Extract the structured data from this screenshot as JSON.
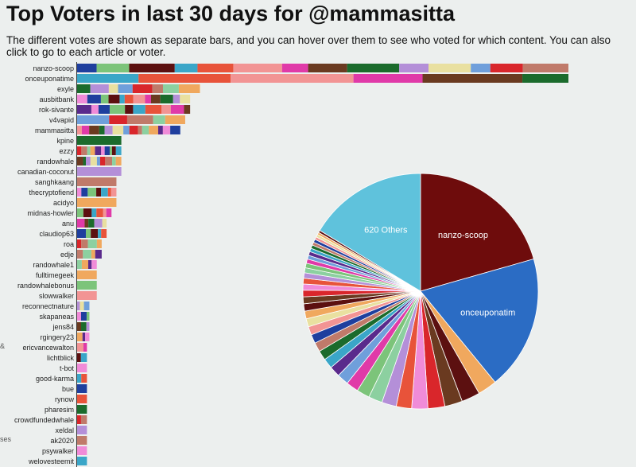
{
  "header": {
    "title": "Top Voters in last 30 days for @mammasitta",
    "description": "The different votes are shown as separate bars, and you can hover over them to see who voted for which content. You can also click to go to each article or voter."
  },
  "edge": {
    "glyph1": "&",
    "glyph2": "ses"
  },
  "colors": {
    "palette": [
      "#1f3f9e",
      "#6f9fdb",
      "#e8533a",
      "#f0a85e",
      "#1b6b2c",
      "#7cc47a",
      "#d9262b",
      "#f29494",
      "#5a2a8c",
      "#b48fd8",
      "#5c1010",
      "#c07a6a",
      "#e03aa8",
      "#f08bd8",
      "#e9e0a0",
      "#3aa6c8",
      "#8cd0a0",
      "#6a3a20"
    ],
    "pie_others": "#5fc2dc",
    "pie_nanzo": "#6e0c0c",
    "pie_once": "#2b6cc4"
  },
  "chart_data": [
    {
      "type": "bar",
      "title": "",
      "orientation": "horizontal",
      "stacked": true,
      "categories": [
        "nanzo-scoop",
        "onceuponatime",
        "exyle",
        "ausbitbank",
        "rok-sivante",
        "v4vapid",
        "mammasitta",
        "kpine",
        "ezzy",
        "randowhale",
        "canadian-coconut",
        "sanghkaang",
        "thecryptofiend",
        "acidyo",
        "midnas-howler",
        "anu",
        "claudiop63",
        "roa",
        "edje",
        "randowhale1",
        "fulltimegeek",
        "randowhalebonus",
        "slowwalker",
        "reconnectnature",
        "skapaneas",
        "jens84",
        "rgingery23",
        "ericvancewalton",
        "lichtblick",
        "t-bot",
        "good-karma",
        "bue",
        "rynow",
        "pharesim",
        "crowdfundedwhale",
        "xeldal",
        "ak2020",
        "psywalker",
        "welovesteemit"
      ],
      "values": [
        100,
        100,
        25,
        23,
        23,
        22,
        21,
        9,
        9,
        9,
        9,
        8,
        8,
        8,
        7,
        6,
        6,
        5,
        5,
        4,
        4,
        4,
        4,
        2.5,
        2.5,
        2.5,
        2.5,
        2,
        2,
        2,
        2,
        2,
        2,
        2,
        2,
        2,
        2,
        2,
        2
      ],
      "segments": [
        14,
        6,
        8,
        12,
        10,
        5,
        14,
        1,
        10,
        9,
        1,
        1,
        7,
        1,
        6,
        5,
        5,
        4,
        4,
        4,
        1,
        1,
        1,
        3,
        3,
        3,
        3,
        2,
        2,
        1,
        2,
        1,
        1,
        1,
        2,
        1,
        1,
        1,
        1
      ]
    },
    {
      "type": "pie",
      "title": "",
      "labels": [
        "620 Others",
        "nanzo-scoop",
        "onceuponatim"
      ],
      "values": [
        15.5,
        19.5,
        17.5
      ],
      "small_slices": 38,
      "small_slice_values": [
        2.5,
        2.4,
        2.3,
        2.2,
        2.1,
        2.0,
        1.9,
        1.8,
        1.7,
        1.6,
        1.5,
        1.4,
        1.3,
        1.25,
        1.2,
        1.15,
        1.1,
        1.05,
        1.0,
        0.95,
        0.9,
        0.85,
        0.8,
        0.75,
        0.7,
        0.65,
        0.6,
        0.55,
        0.5,
        0.5,
        0.45,
        0.45,
        0.4,
        0.4,
        0.35,
        0.35,
        0.3,
        0.3
      ]
    }
  ]
}
